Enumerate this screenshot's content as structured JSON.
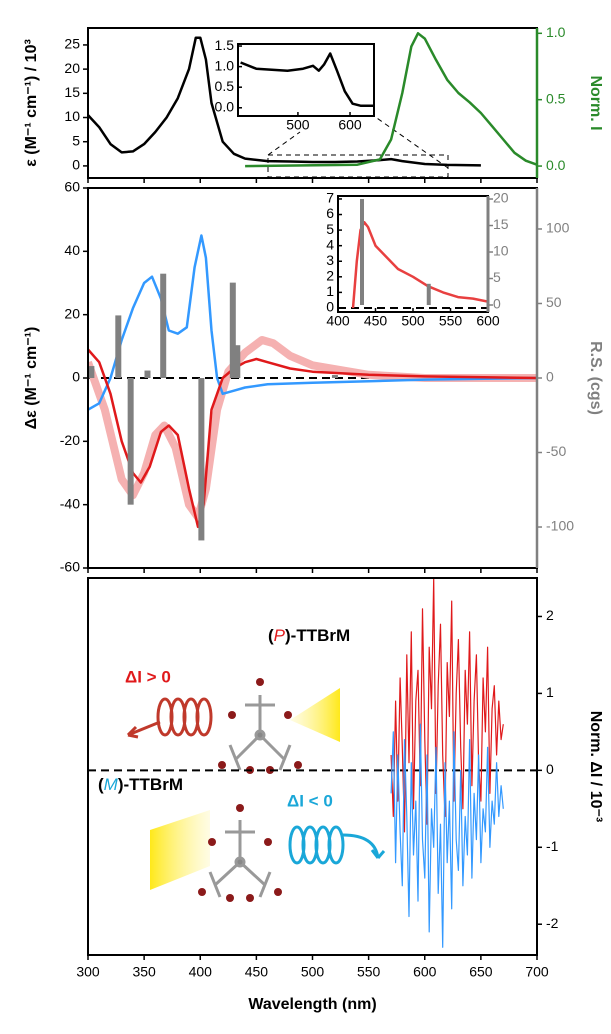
{
  "chart_data": [
    {
      "type": "line",
      "ylabel": "ε (M⁻¹ cm⁻¹) / 10³",
      "y2label": "Norm. I",
      "y2_color": "#2a8a2a",
      "ylim": [
        -2.5,
        28.5
      ],
      "yticks": [
        0,
        5,
        10,
        15,
        20,
        25
      ],
      "y2lim": [
        -0.09,
        1.04
      ],
      "y2ticks": [
        {
          "value": 0,
          "label": "0.0"
        },
        0.5,
        {
          "value": 1,
          "label": "1.0"
        }
      ],
      "series": [
        {
          "color": "#000000",
          "x": [
            300,
            310,
            320,
            330,
            340,
            350,
            360,
            370,
            380,
            390,
            396,
            400,
            405,
            410,
            420,
            430,
            440,
            460,
            480,
            500,
            520,
            540,
            560,
            570,
            580,
            600,
            620,
            650
          ],
          "values": [
            10.5,
            8,
            4.5,
            2.8,
            3,
            4.5,
            7,
            10,
            14,
            20,
            26.5,
            26.5,
            22,
            13,
            5,
            2.5,
            1.5,
            1,
            0.9,
            0.8,
            0.8,
            0.9,
            1.2,
            1.4,
            1,
            0.4,
            0.2,
            0.1
          ]
        },
        {
          "color": "#2a8a2a",
          "axis": "y2",
          "x": [
            440,
            540,
            560,
            570,
            580,
            588,
            594,
            600,
            610,
            620,
            630,
            640,
            650,
            660,
            670,
            680,
            690,
            700
          ],
          "values": [
            0,
            0.01,
            0.05,
            0.2,
            0.55,
            0.9,
            1,
            0.96,
            0.8,
            0.65,
            0.55,
            0.48,
            0.4,
            0.3,
            0.2,
            0.1,
            0.04,
            0.01
          ]
        }
      ]
    },
    {
      "type": "line",
      "ylabel": "Δε (M⁻¹ cm⁻¹)",
      "y2label": "R.S. (cgs)",
      "y2_color": "#808080",
      "zero_line": true,
      "ylim": [
        -60,
        60
      ],
      "yticks": [
        -60,
        -40,
        -20,
        0,
        20,
        40,
        60
      ],
      "y2lim": [
        -127.5,
        127.5
      ],
      "y2ticks": [
        -100,
        -50,
        0,
        50,
        100
      ],
      "series": [
        {
          "color": "#f5b1b1",
          "line_width": 8,
          "x": [
            300,
            315,
            330,
            340,
            350,
            360,
            368,
            378,
            390,
            398,
            405,
            415,
            425,
            440,
            455,
            465,
            480,
            500,
            550,
            600,
            700
          ],
          "values": [
            5,
            -10,
            -32,
            -37,
            -30,
            -18,
            -15,
            -22,
            -40,
            -44,
            -35,
            -10,
            2,
            8,
            12,
            11,
            7,
            4,
            1,
            0,
            0
          ]
        },
        {
          "color": "#3399ff",
          "x": [
            300,
            310,
            320,
            330,
            340,
            350,
            357,
            365,
            372,
            380,
            388,
            395,
            401,
            405,
            410,
            415,
            420,
            430,
            440,
            460,
            500,
            550,
            600,
            700
          ],
          "values": [
            -10,
            -8,
            0,
            12,
            22,
            30,
            32,
            25,
            15,
            14,
            16,
            35,
            45,
            38,
            15,
            0,
            -5,
            -4,
            -3,
            -2,
            -1.5,
            -1,
            -0.5,
            0
          ]
        },
        {
          "color": "#e0191b",
          "x": [
            300,
            310,
            320,
            330,
            340,
            347,
            355,
            365,
            372,
            380,
            390,
            398,
            403,
            410,
            420,
            430,
            440,
            450,
            460,
            480,
            500,
            550,
            600,
            700
          ],
          "values": [
            9,
            5,
            -5,
            -20,
            -30,
            -33,
            -28,
            -17,
            -15,
            -18,
            -35,
            -47,
            -40,
            -10,
            0,
            3,
            5,
            6,
            5,
            3,
            2,
            1,
            0.5,
            0
          ]
        },
        {
          "type": "bar",
          "axis": "y2",
          "color": "#808080",
          "x": [
            303,
            327,
            338,
            353,
            367,
            401,
            429,
            433,
            520
          ],
          "values": [
            8,
            42,
            -85,
            5,
            70,
            -109,
            64,
            22,
            2
          ]
        }
      ]
    },
    {
      "type": "line",
      "y2label": "Norm. ΔI / 10⁻³",
      "xlabel": "Wavelength (nm)",
      "zero_line": true,
      "xlim": [
        300,
        700
      ],
      "xticks": [
        300,
        350,
        400,
        450,
        500,
        550,
        600,
        650,
        700
      ],
      "y2lim": [
        -2.4,
        2.5
      ],
      "y2ticks": [
        -2,
        -1,
        0,
        1,
        2
      ],
      "x": [
        570,
        572,
        574,
        576,
        578,
        580,
        582,
        584,
        586,
        588,
        590,
        592,
        594,
        596,
        598,
        600,
        602,
        604,
        606,
        608,
        610,
        612,
        614,
        616,
        618,
        620,
        622,
        624,
        626,
        628,
        630,
        632,
        634,
        636,
        638,
        640,
        642,
        644,
        646,
        648,
        650,
        652,
        654,
        656,
        658,
        660,
        662,
        664,
        666,
        668,
        670
      ],
      "annotations": {
        "p_open": "(",
        "p_letter": "P",
        "p_rest": ")-TTBrM",
        "p_delta": "ΔI > 0",
        "m_open": "(",
        "m_letter": "M",
        "m_rest": ")-TTBrM",
        "m_delta": "ΔI < 0"
      },
      "series": [
        {
          "color": "#e0191b",
          "axis": "y2",
          "values": [
            0.2,
            -0.6,
            0.9,
            -0.4,
            1.2,
            0.3,
            -0.8,
            1.5,
            0.1,
            1.8,
            -0.5,
            0.9,
            1.3,
            -0.2,
            2.1,
            0.4,
            -0.7,
            1.6,
            0.8,
            2.5,
            -0.3,
            1.1,
            1.9,
            0.2,
            -0.6,
            1.4,
            0.7,
            2.2,
            -0.4,
            1,
            1.7,
            0.3,
            -0.5,
            1.3,
            0.6,
            1.8,
            -0.2,
            0.9,
            1.5,
            0.1,
            -0.4,
            1.2,
            0.5,
            1.6,
            -0.3,
            0.8,
            1.1,
            0.2,
            0.9,
            0.4,
            0.6
          ]
        },
        {
          "color": "#3399ff",
          "axis": "y2",
          "values": [
            -0.3,
            0.5,
            -1.2,
            0.2,
            -0.8,
            -1.5,
            0.4,
            -0.6,
            -1.9,
            0.1,
            -1.1,
            -0.4,
            -1.7,
            0.6,
            -0.9,
            -1.4,
            0.2,
            -2.1,
            -0.5,
            -1,
            0.3,
            -1.6,
            -0.7,
            -2.3,
            0.1,
            -1.2,
            -0.4,
            -1.8,
            0.5,
            -0.9,
            -1.3,
            0,
            -1.5,
            -0.6,
            -1.1,
            0.4,
            -1.4,
            -0.3,
            -0.9,
            0.2,
            -1.2,
            -0.5,
            -0.8,
            0.3,
            -1,
            -0.4,
            -0.7,
            0.1,
            -0.6,
            -0.2,
            -0.5
          ]
        }
      ]
    },
    {
      "type": "line",
      "xlim": [
        385,
        646
      ],
      "xticks": [
        500,
        600
      ],
      "ylim": [
        -0.2,
        1.55
      ],
      "yticks": [
        {
          "value": 0,
          "label": "0.0"
        },
        0.5,
        {
          "value": 1,
          "label": "1.0"
        },
        1.5
      ],
      "series": [
        {
          "color": "#000000",
          "x": [
            390,
            420,
            480,
            510,
            529,
            540,
            550,
            562,
            575,
            590,
            605,
            620,
            645
          ],
          "values": [
            1.1,
            0.95,
            0.9,
            0.95,
            1.02,
            0.9,
            1.05,
            1.32,
            0.9,
            0.4,
            0.1,
            0.05,
            0.05
          ]
        }
      ]
    },
    {
      "type": "line",
      "zero_line": true,
      "xlim": [
        400,
        600
      ],
      "xticks": [
        400,
        450,
        500,
        550,
        600
      ],
      "ylim": [
        -0.26,
        7.19
      ],
      "yticks": [
        0,
        1,
        2,
        3,
        4,
        5,
        6,
        7
      ],
      "y2lim": [
        -1.32,
        20.57
      ],
      "y2ticks": [
        0,
        5,
        10,
        15,
        20
      ],
      "y2_color": "#808080",
      "series": [
        {
          "color": "#e84040",
          "x": [
            420,
            425,
            430,
            435,
            440,
            450,
            460,
            470,
            480,
            500,
            520,
            540,
            560,
            580,
            600
          ],
          "values": [
            0,
            3,
            5,
            5.5,
            5.2,
            4,
            3.5,
            3,
            2.5,
            2,
            1.4,
            1,
            0.7,
            0.6,
            0.4
          ]
        },
        {
          "type": "bar",
          "axis": "y2",
          "color": "#808080",
          "x": [
            432,
            521
          ],
          "values": [
            20,
            4
          ]
        }
      ]
    }
  ]
}
